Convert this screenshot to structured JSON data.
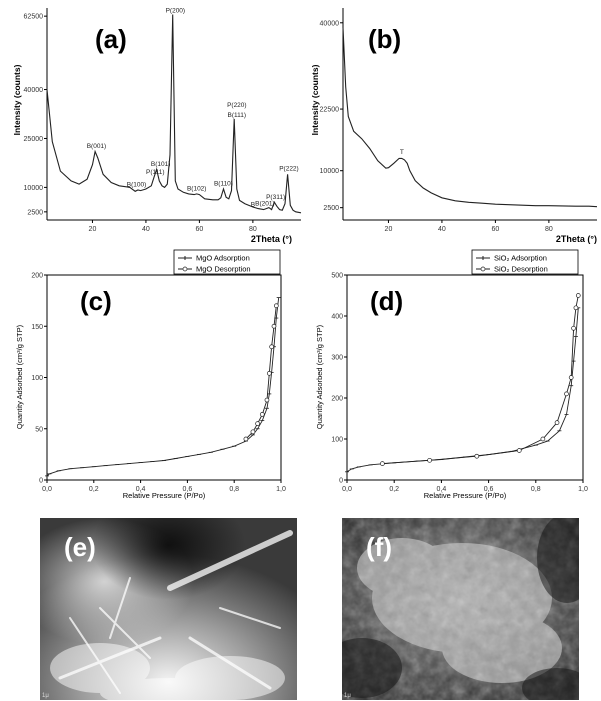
{
  "colors": {
    "line": "#333333",
    "axis": "#000000",
    "sem_text": "#ffffff"
  },
  "chart_data": [
    {
      "type": "line",
      "panel_label": "(a)",
      "xlabel": "2Theta (°)",
      "ylabel": "Intensity (counts)",
      "xlim": [
        3,
        98
      ],
      "ylim": [
        0,
        65000
      ],
      "x_ticks": [
        20,
        40,
        60,
        80
      ],
      "y_ticks": [
        2500,
        10000,
        25000,
        40000,
        62500
      ],
      "grid": false,
      "series": [
        {
          "x": [
            3,
            5,
            8,
            12,
            15,
            18,
            20,
            21,
            22,
            24,
            27,
            30,
            34,
            36,
            37,
            38,
            40,
            42,
            43,
            44,
            45,
            46,
            47,
            48,
            49,
            50,
            51,
            52,
            54,
            56,
            58,
            59,
            60,
            62,
            65,
            67,
            68,
            69,
            70,
            71,
            72,
            73,
            74,
            75,
            77,
            80,
            82,
            84,
            85,
            86,
            87,
            88,
            89,
            90,
            91,
            92,
            93,
            94,
            95,
            96,
            98
          ],
          "y": [
            40000,
            24000,
            15000,
            12000,
            11000,
            12500,
            17000,
            21000,
            19000,
            14000,
            11500,
            10500,
            10000,
            8800,
            9200,
            9000,
            9500,
            10500,
            13000,
            15500,
            12000,
            10500,
            10000,
            11000,
            20000,
            63000,
            12000,
            9500,
            8500,
            8000,
            7800,
            8000,
            7800,
            6500,
            6200,
            6200,
            6800,
            9500,
            7000,
            6500,
            9000,
            31000,
            9500,
            6000,
            5000,
            4000,
            3500,
            3200,
            3500,
            3800,
            3200,
            5500,
            4200,
            3200,
            3000,
            5000,
            14000,
            4500,
            3000,
            2500,
            2200
          ]
        }
      ],
      "annotations": [
        {
          "text": "B(001)",
          "x": 21.5,
          "y": 21500
        },
        {
          "text": "B(100)",
          "x": 36.5,
          "y": 9600
        },
        {
          "text": "P(111)",
          "x": 43.5,
          "y": 13500
        },
        {
          "text": "B(101)",
          "x": 45.5,
          "y": 16000
        },
        {
          "text": "P(200)",
          "x": 51,
          "y": 63000
        },
        {
          "text": "B(102)",
          "x": 59,
          "y": 8500
        },
        {
          "text": "B(110)",
          "x": 69,
          "y": 10000
        },
        {
          "text": "P(220)",
          "x": 74,
          "y": 34000
        },
        {
          "text": "B(111)",
          "x": 74,
          "y": 31000
        },
        {
          "text": "B",
          "x": 80,
          "y": 3500
        },
        {
          "text": "B(201)",
          "x": 84.5,
          "y": 3800
        },
        {
          "text": "P(311)",
          "x": 88.5,
          "y": 5800
        },
        {
          "text": "P(222)",
          "x": 93.5,
          "y": 14500
        }
      ]
    },
    {
      "type": "line",
      "panel_label": "(b)",
      "xlabel": "2Theta (°)",
      "ylabel": "Intensity (counts)",
      "xlim": [
        3,
        98
      ],
      "ylim": [
        0,
        43000
      ],
      "x_ticks": [
        20,
        40,
        60,
        80
      ],
      "y_ticks": [
        2500,
        10000,
        22500,
        40000
      ],
      "grid": false,
      "series": [
        {
          "x": [
            3,
            4,
            5,
            7,
            10,
            13,
            16,
            19,
            20,
            22,
            24,
            25,
            26,
            27,
            28,
            30,
            33,
            36,
            40,
            45,
            50,
            55,
            60,
            65,
            70,
            75,
            80,
            85,
            90,
            95,
            98
          ],
          "y": [
            39000,
            27000,
            21000,
            18000,
            16500,
            14500,
            12000,
            10500,
            10600,
            11500,
            12500,
            12500,
            12200,
            11500,
            10000,
            8000,
            6500,
            5500,
            4500,
            3900,
            3600,
            3400,
            3200,
            3100,
            3000,
            2900,
            2900,
            2850,
            2800,
            2800,
            2700
          ]
        }
      ],
      "annotations": [
        {
          "text": "T",
          "x": 25,
          "y": 13000
        }
      ]
    },
    {
      "type": "line",
      "panel_label": "(c)",
      "xlabel": "Relative Pressure (P/Po)",
      "ylabel": "Quantity Adsorbed (cm³/g STP)",
      "xlim": [
        0,
        1.0
      ],
      "ylim": [
        0,
        200
      ],
      "x_ticks": [
        "0,0",
        "0,2",
        "0,4",
        "0,6",
        "0,8",
        "1,0"
      ],
      "y_ticks": [
        0,
        50,
        100,
        150,
        200
      ],
      "grid": false,
      "legend": "top-right",
      "series": [
        {
          "name": "MgO Adsorption",
          "x": [
            0,
            0.01,
            0.05,
            0.1,
            0.15,
            0.2,
            0.25,
            0.3,
            0.35,
            0.4,
            0.45,
            0.5,
            0.55,
            0.6,
            0.65,
            0.7,
            0.75,
            0.8,
            0.85,
            0.88,
            0.9,
            0.92,
            0.94,
            0.95,
            0.96,
            0.97,
            0.98,
            0.99
          ],
          "y": [
            4,
            6,
            9,
            11,
            12,
            13,
            14,
            15,
            16,
            17,
            18,
            19,
            21,
            23,
            25,
            27,
            30,
            33,
            38,
            44,
            50,
            58,
            70,
            84,
            105,
            130,
            158,
            178
          ]
        },
        {
          "name": "MgO Desorption",
          "x": [
            0.85,
            0.88,
            0.9,
            0.92,
            0.94,
            0.95,
            0.96,
            0.97,
            0.98
          ],
          "y": [
            40,
            47,
            55,
            64,
            78,
            104,
            130,
            150,
            170
          ]
        }
      ]
    },
    {
      "type": "line",
      "panel_label": "(d)",
      "xlabel": "Relative Pressure (P/Po)",
      "ylabel": "Quantity Adsorbed (cm³/g STP)",
      "xlim": [
        0,
        1.0
      ],
      "ylim": [
        0,
        500
      ],
      "x_ticks": [
        "0,0",
        "0,2",
        "0,4",
        "0,6",
        "0,8",
        "1,0"
      ],
      "y_ticks": [
        0,
        100,
        200,
        300,
        400,
        500
      ],
      "grid": false,
      "legend": "top-right",
      "series": [
        {
          "name": "SiO₂ Adsorption",
          "x": [
            0,
            0.02,
            0.05,
            0.1,
            0.2,
            0.3,
            0.4,
            0.5,
            0.6,
            0.7,
            0.8,
            0.85,
            0.9,
            0.93,
            0.95,
            0.96,
            0.97,
            0.98
          ],
          "y": [
            20,
            27,
            32,
            37,
            42,
            46,
            50,
            56,
            62,
            70,
            85,
            95,
            120,
            160,
            230,
            290,
            350,
            420
          ]
        },
        {
          "name": "SiO₂ Desorption",
          "x": [
            0.15,
            0.35,
            0.55,
            0.73,
            0.83,
            0.89,
            0.93,
            0.95,
            0.96,
            0.97,
            0.98
          ],
          "y": [
            40,
            48,
            58,
            72,
            100,
            140,
            210,
            250,
            370,
            420,
            450
          ]
        }
      ]
    }
  ],
  "sem_images": [
    {
      "panel_label": "(e)",
      "scale_text": "1μ"
    },
    {
      "panel_label": "(f)",
      "scale_text": "1μ"
    }
  ],
  "labels": {
    "a": "(a)",
    "b": "(b)",
    "c": "(c)",
    "d": "(d)",
    "e": "(e)",
    "f": "(f)"
  }
}
